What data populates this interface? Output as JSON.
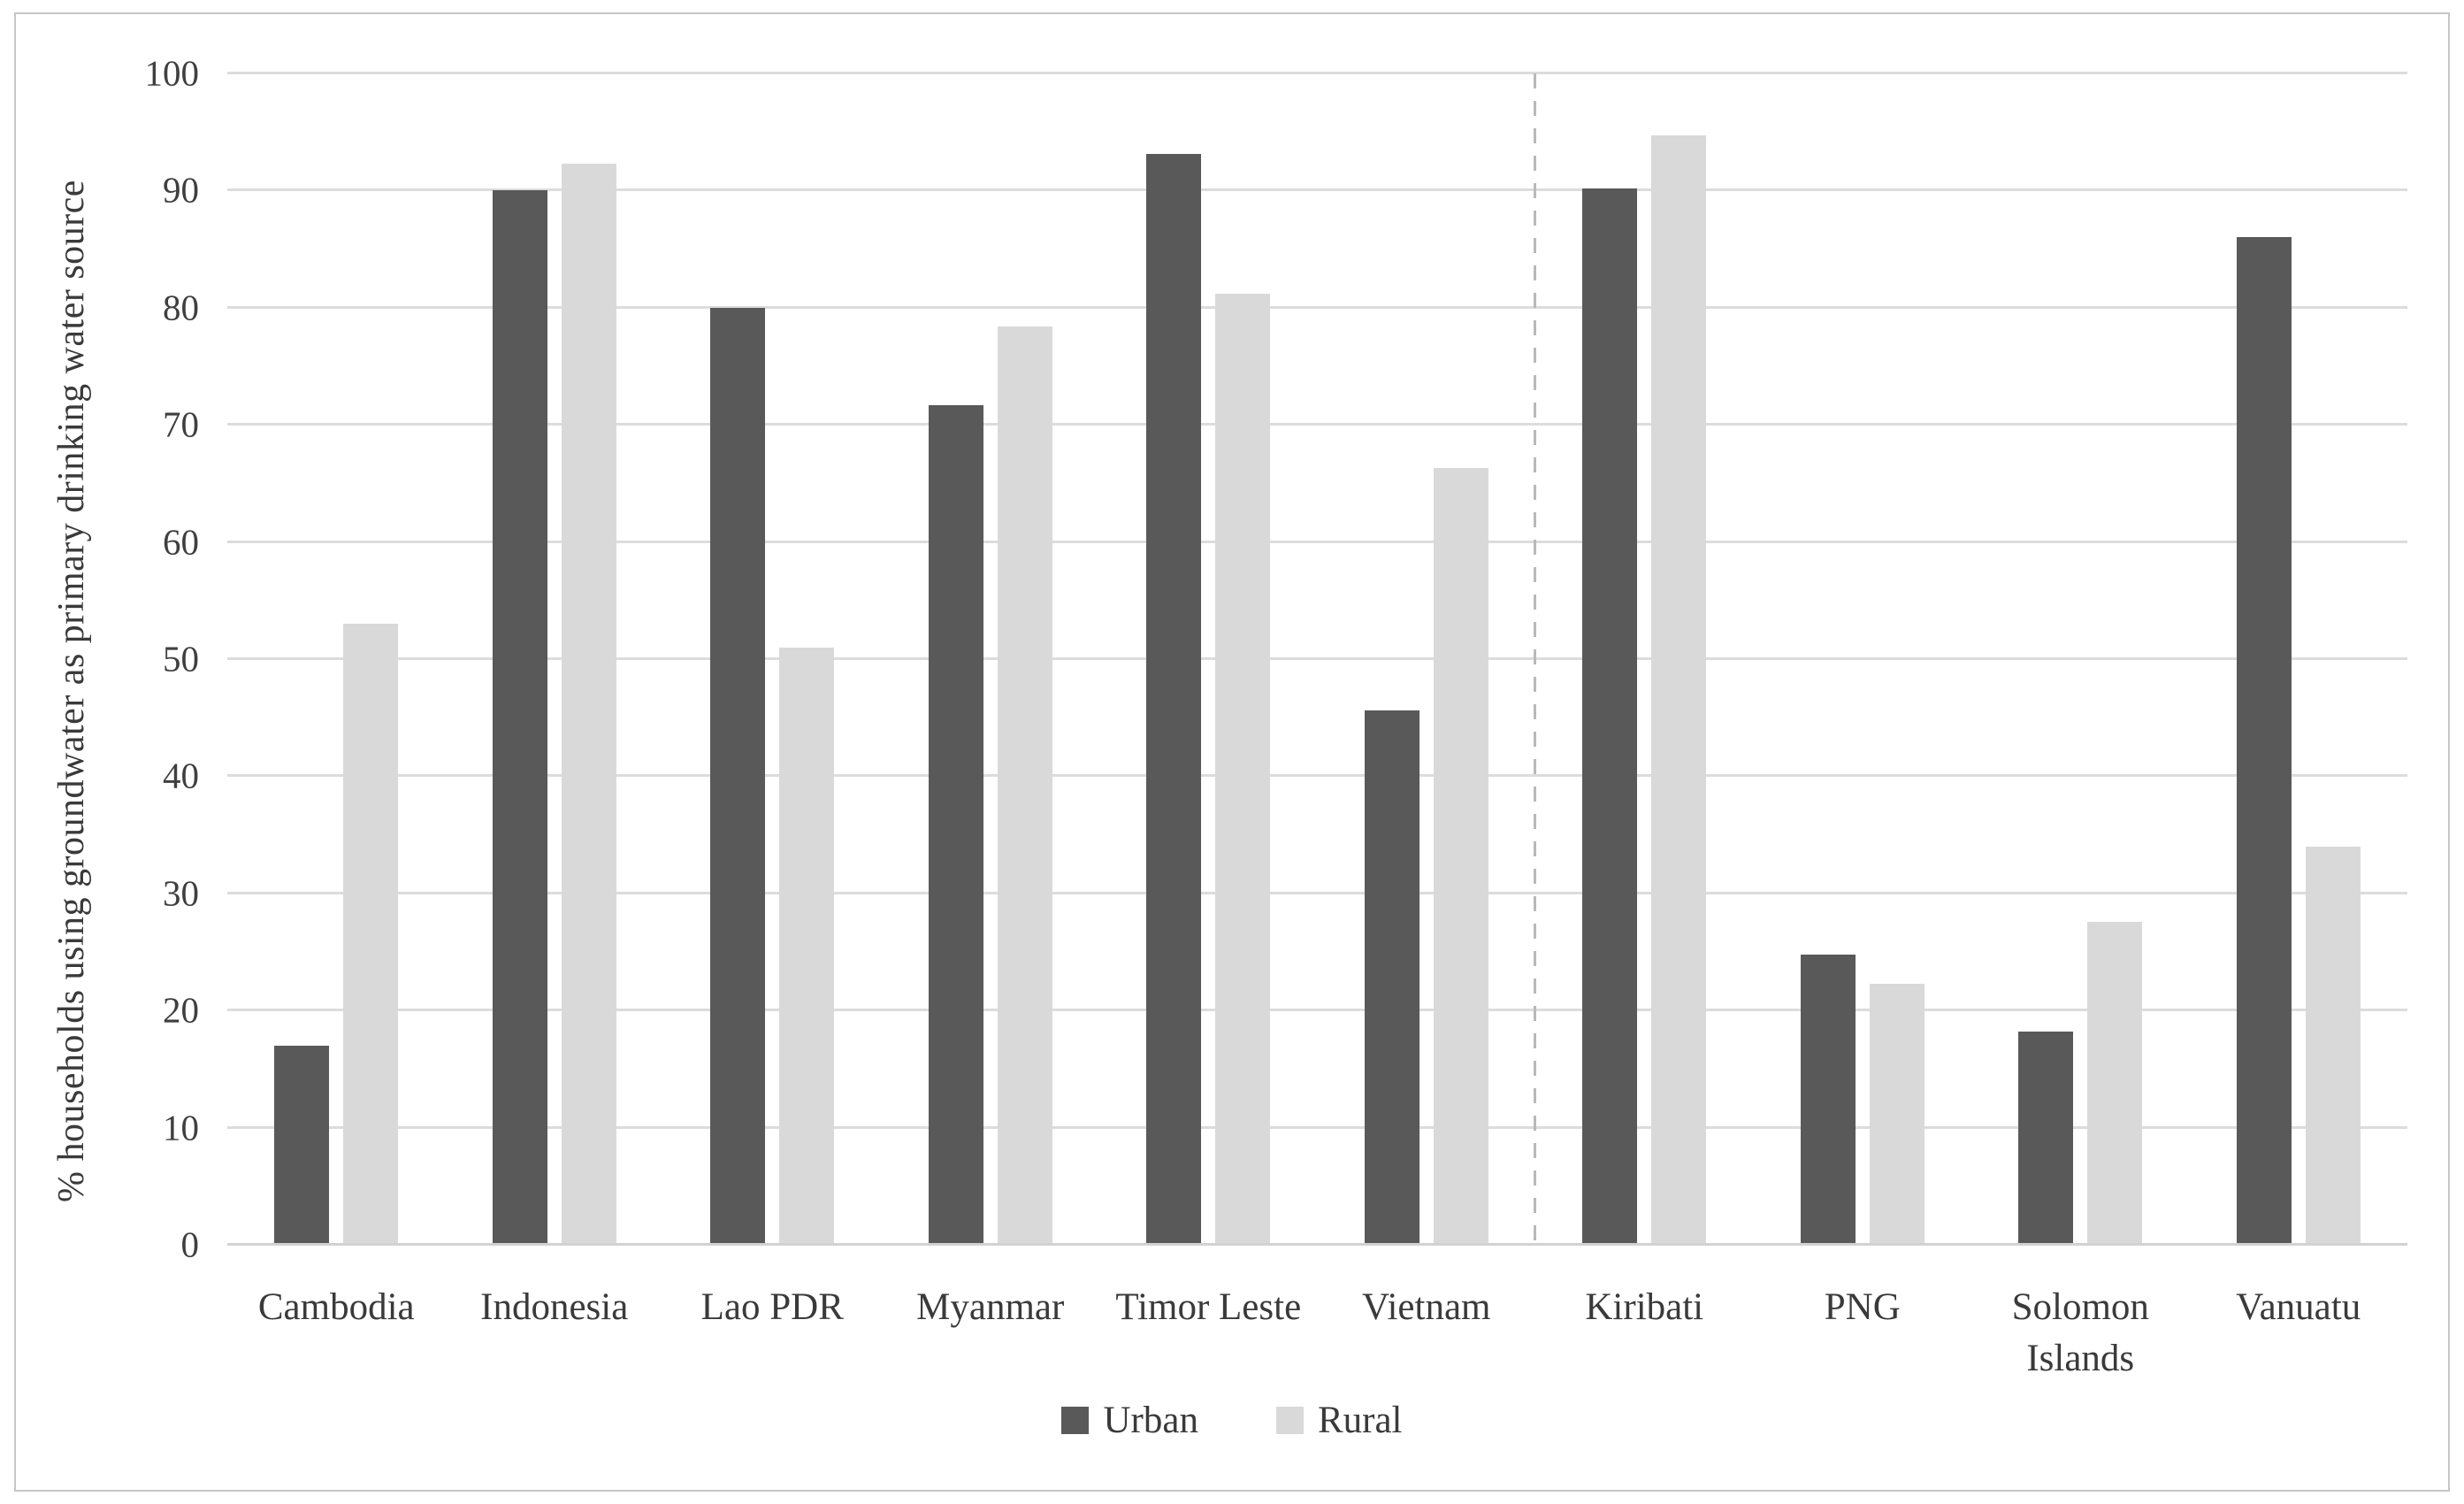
{
  "chart_data": {
    "type": "bar",
    "categories": [
      "Cambodia",
      "Indonesia",
      "Lao PDR",
      "Myanmar",
      "Timor Leste",
      "Vietnam",
      "Kiribati",
      "PNG",
      "Solomon Islands",
      "Vanuatu"
    ],
    "series": [
      {
        "name": "Urban",
        "color": "#595959",
        "values": [
          17,
          90,
          80,
          71.7,
          93.1,
          45.6,
          90.2,
          24.8,
          18.2,
          86
        ]
      },
      {
        "name": "Rural",
        "color": "#d9d9d9",
        "values": [
          53,
          92.3,
          51,
          78.4,
          81.2,
          66.3,
          94.7,
          22.3,
          27.6,
          34
        ]
      }
    ],
    "title": "",
    "xlabel": "",
    "ylabel": "% households using groundwater as primary drinking water source",
    "ylim": [
      0,
      100
    ],
    "yticks": [
      0,
      10,
      20,
      30,
      40,
      50,
      60,
      70,
      80,
      90,
      100
    ],
    "grid": true,
    "legend_position": "bottom",
    "separator_after_index": 6
  },
  "legend": {
    "urban_label": "Urban",
    "rural_label": "Rural"
  },
  "colors": {
    "urban": "#595959",
    "rural": "#d9d9d9",
    "gridline": "#dcdcdc",
    "separator": "#b9b9b9",
    "figure_border": "#c6c6c6",
    "background": "#ffffff"
  }
}
